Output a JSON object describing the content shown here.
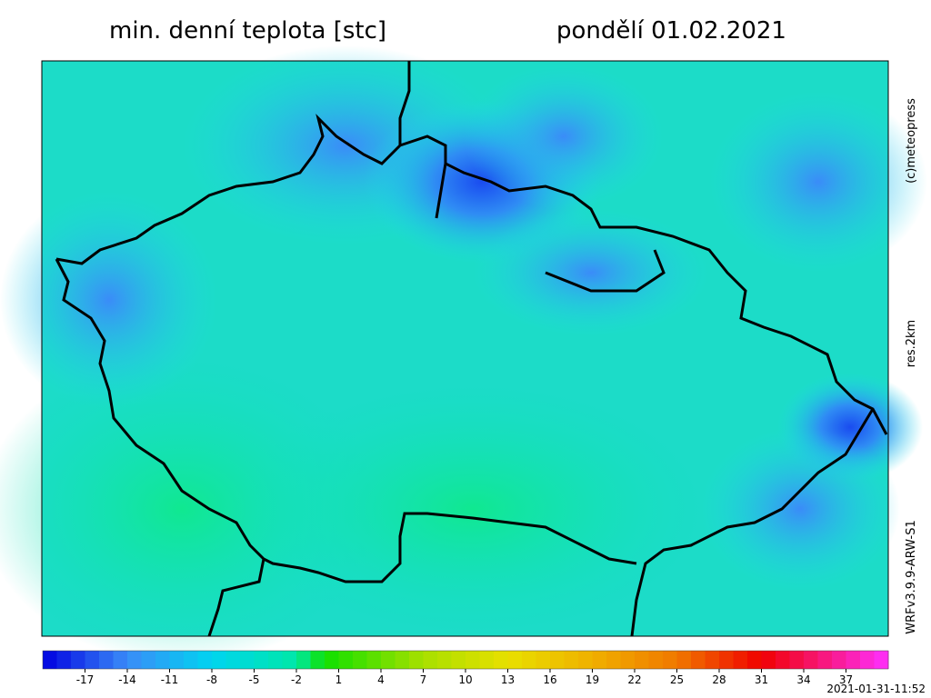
{
  "header": {
    "title": "min. denní teplota [stc]",
    "date": "pondělí 01.02.2021"
  },
  "side_labels": {
    "copyright": "(c)meteopress",
    "resolution": "res.2km",
    "model": "WRFv3.9.9-ARW-S1"
  },
  "colorbar": {
    "range": [
      -20,
      40
    ],
    "ticks": [
      -17,
      -14,
      -11,
      -8,
      -5,
      -2,
      1,
      4,
      7,
      10,
      13,
      16,
      19,
      22,
      25,
      28,
      31,
      34,
      37
    ],
    "stops": [
      {
        "value": -20,
        "color": "#0000e0"
      },
      {
        "value": -14,
        "color": "#3a8cf8"
      },
      {
        "value": -8,
        "color": "#00d4f0"
      },
      {
        "value": -2,
        "color": "#00e8a8"
      },
      {
        "value": 0,
        "color": "#10e000"
      },
      {
        "value": 7,
        "color": "#a8e000"
      },
      {
        "value": 13,
        "color": "#e8e000"
      },
      {
        "value": 19,
        "color": "#f0b000"
      },
      {
        "value": 25,
        "color": "#f07800"
      },
      {
        "value": 31,
        "color": "#f00000"
      },
      {
        "value": 40,
        "color": "#ff30ff"
      }
    ]
  },
  "timestamp": "2021-01-31-11:52"
}
